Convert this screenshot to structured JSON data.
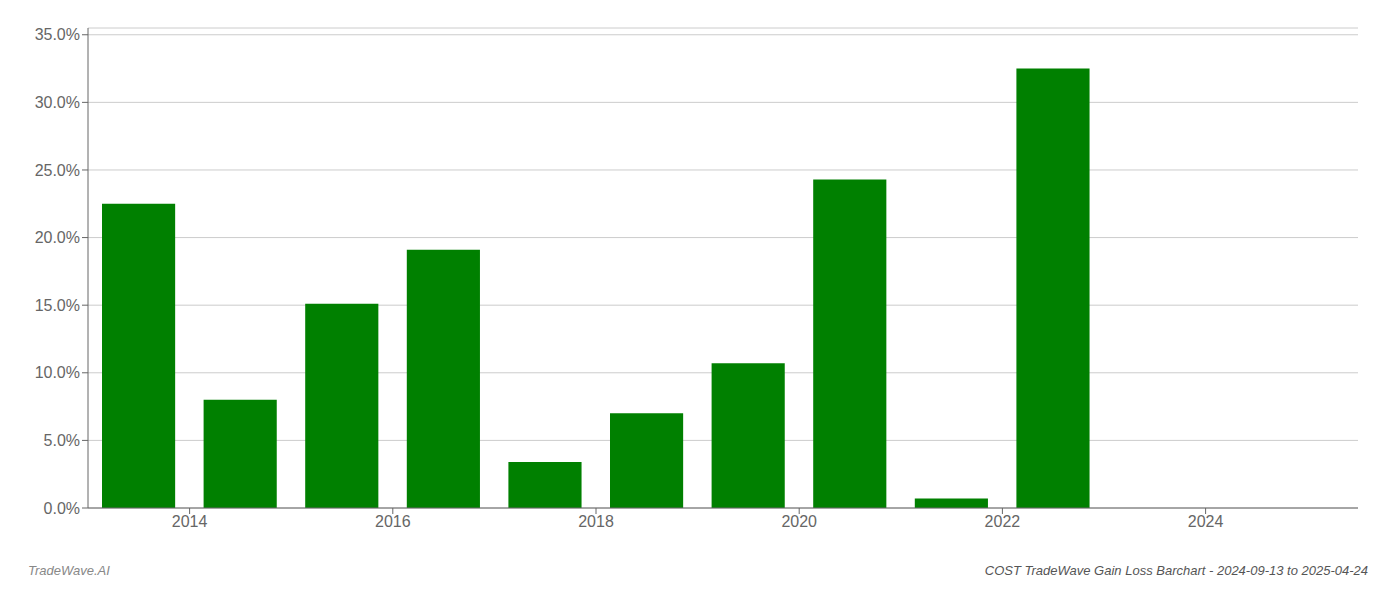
{
  "chart_data": {
    "type": "bar",
    "title": "COST TradeWave Gain Loss Barchart - 2024-09-13 to 2025-04-24",
    "annotations": [
      "TradeWave.AI"
    ],
    "x": [
      2013.5,
      2014.5,
      2015.5,
      2016.5,
      2017.5,
      2018.5,
      2019.5,
      2020.5,
      2021.5,
      2022.5
    ],
    "values": [
      0.225,
      0.08,
      0.151,
      0.191,
      0.034,
      0.07,
      0.107,
      0.243,
      0.007,
      0.325
    ],
    "color": "#008000",
    "xlim": [
      2013.0,
      2025.5
    ],
    "xticks": [
      2014,
      2016,
      2018,
      2020,
      2022,
      2024
    ],
    "ylim": [
      0,
      0.355
    ],
    "yticks": [
      {
        "value": 0.0,
        "label": "0.0%"
      },
      {
        "value": 0.05,
        "label": "5.0%"
      },
      {
        "value": 0.1,
        "label": "10.0%"
      },
      {
        "value": 0.15,
        "label": "15.0%"
      },
      {
        "value": 0.2,
        "label": "20.0%"
      },
      {
        "value": 0.25,
        "label": "25.0%"
      },
      {
        "value": 0.3,
        "label": "30.0%"
      },
      {
        "value": 0.35,
        "label": "35.0%"
      }
    ],
    "grid": true
  }
}
